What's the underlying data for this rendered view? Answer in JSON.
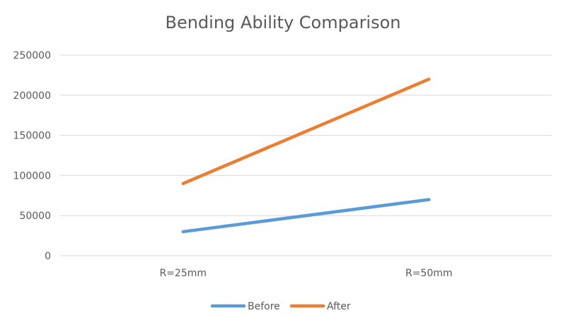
{
  "chart_data": {
    "type": "line",
    "title": "Bending Ability Comparison",
    "xlabel": "",
    "ylabel": "",
    "categories": [
      "R=25mm",
      "R=50mm"
    ],
    "series": [
      {
        "name": "Before",
        "values": [
          30000,
          70000
        ],
        "color": "#5B9BD5"
      },
      {
        "name": "After",
        "values": [
          90000,
          220000
        ],
        "color": "#ED7D31"
      }
    ],
    "ylim": [
      0,
      250000
    ],
    "yticks": [
      0,
      50000,
      100000,
      150000,
      200000,
      250000
    ],
    "grid": true,
    "legend_position": "bottom"
  }
}
